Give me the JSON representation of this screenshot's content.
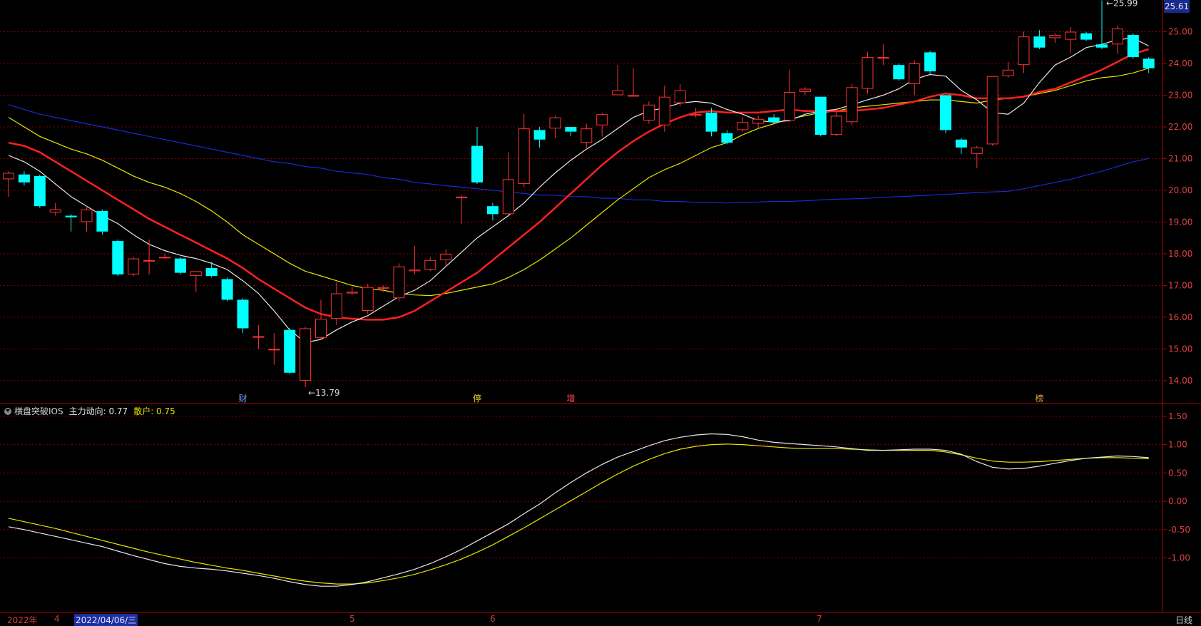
{
  "chart_data": [
    {
      "type": "candlestick",
      "ylim": [
        13.3,
        26.0
      ],
      "y_ticks": [
        "25.00",
        "24.00",
        "23.00",
        "22.00",
        "21.00",
        "20.00",
        "19.00",
        "18.00",
        "17.00",
        "16.00",
        "15.00",
        "14.00"
      ],
      "current_price_label": "25.61",
      "max_label": "25.99",
      "min_label": "13.79",
      "candles": [
        [
          20.35,
          20.55,
          19.8,
          20.6
        ],
        [
          20.5,
          20.25,
          20.15,
          20.6
        ],
        [
          20.45,
          19.5,
          19.45,
          20.5
        ],
        [
          19.3,
          19.4,
          19.2,
          19.6
        ],
        [
          19.2,
          19.15,
          18.7,
          19.25
        ],
        [
          19.0,
          19.4,
          18.7,
          19.5
        ],
        [
          19.35,
          18.7,
          18.6,
          19.4
        ],
        [
          18.4,
          17.35,
          17.3,
          18.45
        ],
        [
          17.35,
          17.85,
          17.3,
          17.9
        ],
        [
          17.8,
          17.8,
          17.35,
          18.45
        ],
        [
          17.9,
          17.9,
          17.85,
          18.0
        ],
        [
          17.85,
          17.4,
          17.35,
          17.9
        ],
        [
          17.3,
          17.45,
          16.8,
          17.45
        ],
        [
          17.55,
          17.3,
          17.25,
          17.75
        ],
        [
          17.2,
          16.55,
          16.5,
          17.25
        ],
        [
          16.55,
          15.65,
          15.5,
          16.6
        ],
        [
          15.4,
          15.4,
          15.0,
          15.75
        ],
        [
          15.0,
          15.0,
          14.5,
          15.5
        ],
        [
          15.6,
          14.25,
          14.2,
          15.65
        ],
        [
          14.0,
          15.65,
          13.79,
          15.7
        ],
        [
          15.35,
          15.95,
          15.3,
          16.55
        ],
        [
          15.95,
          16.75,
          15.75,
          17.1
        ],
        [
          16.75,
          16.8,
          16.7,
          16.95
        ],
        [
          16.2,
          16.95,
          16.1,
          17.05
        ],
        [
          16.9,
          16.95,
          16.8,
          17.0
        ],
        [
          16.6,
          17.6,
          16.5,
          17.7
        ],
        [
          17.45,
          17.5,
          17.35,
          18.25
        ],
        [
          17.5,
          17.8,
          17.45,
          17.9
        ],
        [
          17.8,
          18.0,
          17.6,
          18.15
        ],
        [
          19.75,
          19.8,
          18.95,
          19.85
        ],
        [
          21.4,
          20.25,
          20.2,
          22.0
        ],
        [
          19.5,
          19.25,
          19.05,
          19.6
        ],
        [
          19.25,
          20.35,
          19.2,
          21.2
        ],
        [
          20.2,
          21.95,
          20.1,
          22.4
        ],
        [
          21.9,
          21.6,
          21.35,
          22.0
        ],
        [
          21.95,
          22.3,
          21.65,
          22.35
        ],
        [
          22.0,
          21.85,
          21.7,
          22.0
        ],
        [
          21.5,
          21.95,
          21.3,
          22.1
        ],
        [
          22.05,
          22.4,
          21.7,
          22.45
        ],
        [
          23.0,
          23.15,
          23.0,
          23.95
        ],
        [
          23.0,
          23.0,
          23.0,
          23.85
        ],
        [
          22.2,
          22.7,
          22.1,
          22.8
        ],
        [
          22.05,
          22.95,
          21.85,
          23.3
        ],
        [
          22.75,
          23.15,
          22.65,
          23.35
        ],
        [
          22.35,
          22.4,
          22.3,
          22.6
        ],
        [
          22.45,
          21.85,
          21.7,
          22.6
        ],
        [
          21.8,
          21.5,
          21.45,
          21.9
        ],
        [
          21.9,
          22.15,
          21.85,
          22.3
        ],
        [
          22.1,
          22.25,
          21.95,
          22.35
        ],
        [
          22.3,
          22.15,
          22.1,
          22.4
        ],
        [
          22.2,
          23.1,
          22.15,
          23.8
        ],
        [
          23.1,
          23.2,
          23.0,
          23.25
        ],
        [
          22.95,
          21.75,
          21.7,
          22.95
        ],
        [
          21.75,
          22.35,
          21.7,
          22.6
        ],
        [
          22.15,
          23.25,
          22.05,
          23.35
        ],
        [
          23.2,
          24.2,
          23.05,
          24.35
        ],
        [
          24.15,
          24.2,
          23.95,
          24.6
        ],
        [
          23.95,
          23.5,
          23.45,
          24.0
        ],
        [
          23.35,
          24.0,
          23.0,
          24.1
        ],
        [
          24.35,
          23.75,
          23.65,
          24.4
        ],
        [
          23.0,
          21.9,
          21.8,
          23.0
        ],
        [
          21.6,
          21.35,
          21.15,
          21.65
        ],
        [
          21.15,
          21.35,
          20.7,
          21.4
        ],
        [
          21.45,
          23.6,
          21.4,
          23.6
        ],
        [
          23.6,
          23.8,
          23.55,
          24.05
        ],
        [
          23.95,
          24.85,
          23.7,
          25.0
        ],
        [
          24.85,
          24.5,
          24.45,
          25.05
        ],
        [
          24.8,
          24.9,
          24.65,
          24.95
        ],
        [
          24.75,
          25.0,
          24.3,
          25.15
        ],
        [
          24.95,
          24.75,
          24.7,
          25.0
        ],
        [
          24.6,
          24.5,
          24.45,
          25.99
        ],
        [
          24.6,
          25.1,
          24.3,
          25.2
        ],
        [
          24.9,
          24.2,
          24.15,
          24.95
        ],
        [
          24.15,
          23.85,
          23.7,
          24.2
        ]
      ],
      "ma_white": [
        21.1,
        20.9,
        20.6,
        20.2,
        19.8,
        19.5,
        19.2,
        18.95,
        18.6,
        18.3,
        18.1,
        17.95,
        17.85,
        17.7,
        17.5,
        17.15,
        16.75,
        16.2,
        15.6,
        15.2,
        15.3,
        15.6,
        15.85,
        16.05,
        16.35,
        16.65,
        16.85,
        17.15,
        17.6,
        18.05,
        18.5,
        18.85,
        19.2,
        19.6,
        20.1,
        20.55,
        20.95,
        21.3,
        21.6,
        21.95,
        22.3,
        22.5,
        22.6,
        22.75,
        22.8,
        22.75,
        22.55,
        22.4,
        22.2,
        22.15,
        22.2,
        22.4,
        22.5,
        22.55,
        22.7,
        22.85,
        23.0,
        23.2,
        23.5,
        23.65,
        23.6,
        23.15,
        22.85,
        22.45,
        22.4,
        22.75,
        23.4,
        23.95,
        24.2,
        24.5,
        24.6,
        24.75,
        24.8,
        24.55
      ],
      "ma_red": [
        21.5,
        21.4,
        21.2,
        20.9,
        20.6,
        20.3,
        20.0,
        19.7,
        19.4,
        19.1,
        18.85,
        18.6,
        18.35,
        18.1,
        17.85,
        17.55,
        17.2,
        16.9,
        16.6,
        16.3,
        16.1,
        16.0,
        15.95,
        15.92,
        15.92,
        16.0,
        16.2,
        16.5,
        16.8,
        17.1,
        17.4,
        17.8,
        18.2,
        18.6,
        19.0,
        19.45,
        19.9,
        20.35,
        20.8,
        21.2,
        21.55,
        21.85,
        22.1,
        22.3,
        22.45,
        22.5,
        22.45,
        22.45,
        22.45,
        22.5,
        22.55,
        22.5,
        22.5,
        22.5,
        22.5,
        22.55,
        22.6,
        22.7,
        22.8,
        22.95,
        23.05,
        23.0,
        22.9,
        22.9,
        22.9,
        22.95,
        23.1,
        23.2,
        23.4,
        23.6,
        23.8,
        24.05,
        24.3,
        24.45
      ],
      "ma_yellow": [
        22.3,
        22.0,
        21.7,
        21.5,
        21.3,
        21.15,
        20.95,
        20.7,
        20.45,
        20.25,
        20.1,
        19.9,
        19.65,
        19.35,
        19.0,
        18.6,
        18.3,
        18.0,
        17.7,
        17.45,
        17.3,
        17.15,
        17.0,
        16.9,
        16.85,
        16.75,
        16.7,
        16.68,
        16.75,
        16.85,
        16.95,
        17.05,
        17.25,
        17.5,
        17.8,
        18.15,
        18.5,
        18.9,
        19.3,
        19.7,
        20.05,
        20.4,
        20.65,
        20.85,
        21.1,
        21.35,
        21.5,
        21.75,
        21.95,
        22.1,
        22.25,
        22.35,
        22.45,
        22.5,
        22.6,
        22.65,
        22.7,
        22.75,
        22.8,
        22.85,
        22.85,
        22.8,
        22.75,
        22.85,
        22.9,
        22.95,
        23.05,
        23.15,
        23.3,
        23.45,
        23.55,
        23.6,
        23.7,
        23.85
      ],
      "ma_blue": [
        22.7,
        22.55,
        22.4,
        22.3,
        22.2,
        22.1,
        22.0,
        21.9,
        21.8,
        21.7,
        21.6,
        21.5,
        21.4,
        21.3,
        21.2,
        21.1,
        21.0,
        20.9,
        20.85,
        20.75,
        20.7,
        20.6,
        20.55,
        20.5,
        20.4,
        20.35,
        20.25,
        20.2,
        20.15,
        20.1,
        20.05,
        20.0,
        19.95,
        19.9,
        19.85,
        19.85,
        19.8,
        19.8,
        19.75,
        19.75,
        19.7,
        19.7,
        19.65,
        19.65,
        19.62,
        19.62,
        19.6,
        19.62,
        19.63,
        19.65,
        19.65,
        19.67,
        19.7,
        19.72,
        19.73,
        19.75,
        19.78,
        19.8,
        19.82,
        19.85,
        19.87,
        19.9,
        19.93,
        19.95,
        19.97,
        20.05,
        20.15,
        20.25,
        20.35,
        20.48,
        20.6,
        20.75,
        20.9,
        21.0
      ],
      "event_markers": [
        {
          "index": 15,
          "label": "财",
          "color": "#6aa0ff"
        },
        {
          "index": 30,
          "label": "停",
          "color": "#e0e040"
        },
        {
          "index": 36,
          "label": "增",
          "color": "#ff5050"
        },
        {
          "index": 66,
          "label": "榜",
          "color": "#e0a040"
        }
      ]
    },
    {
      "type": "line",
      "title": "横盘突破IOS",
      "ylim": [
        -1.95,
        1.7
      ],
      "y_ticks": [
        "1.50",
        "1.00",
        "0.50",
        "0.00",
        "-0.50",
        "-1.00"
      ],
      "series": [
        {
          "name": "主力动向",
          "value_label": "0.77",
          "color": "#e8e8e8",
          "values": [
            -0.45,
            -0.5,
            -0.56,
            -0.62,
            -0.68,
            -0.74,
            -0.8,
            -0.88,
            -0.96,
            -1.03,
            -1.1,
            -1.15,
            -1.18,
            -1.2,
            -1.23,
            -1.27,
            -1.31,
            -1.36,
            -1.42,
            -1.47,
            -1.5,
            -1.5,
            -1.47,
            -1.42,
            -1.35,
            -1.28,
            -1.2,
            -1.1,
            -0.98,
            -0.85,
            -0.7,
            -0.55,
            -0.4,
            -0.22,
            -0.05,
            0.15,
            0.33,
            0.5,
            0.65,
            0.78,
            0.88,
            0.98,
            1.07,
            1.13,
            1.17,
            1.19,
            1.18,
            1.14,
            1.08,
            1.04,
            1.02,
            1.0,
            0.98,
            0.96,
            0.93,
            0.9,
            0.9,
            0.91,
            0.92,
            0.92,
            0.9,
            0.83,
            0.7,
            0.6,
            0.57,
            0.58,
            0.62,
            0.67,
            0.72,
            0.76,
            0.78,
            0.8,
            0.79,
            0.77
          ]
        },
        {
          "name": "散户",
          "value_label": "0.75",
          "color": "#e6e600",
          "values": [
            -0.3,
            -0.36,
            -0.42,
            -0.48,
            -0.55,
            -0.62,
            -0.69,
            -0.76,
            -0.83,
            -0.9,
            -0.96,
            -1.02,
            -1.08,
            -1.13,
            -1.18,
            -1.22,
            -1.27,
            -1.32,
            -1.37,
            -1.41,
            -1.44,
            -1.46,
            -1.46,
            -1.44,
            -1.4,
            -1.35,
            -1.29,
            -1.21,
            -1.12,
            -1.02,
            -0.9,
            -0.77,
            -0.62,
            -0.47,
            -0.31,
            -0.15,
            0.01,
            0.17,
            0.33,
            0.48,
            0.62,
            0.74,
            0.84,
            0.92,
            0.97,
            1.0,
            1.01,
            1.0,
            0.98,
            0.96,
            0.94,
            0.93,
            0.93,
            0.93,
            0.92,
            0.91,
            0.9,
            0.9,
            0.9,
            0.9,
            0.87,
            0.82,
            0.76,
            0.71,
            0.69,
            0.69,
            0.7,
            0.72,
            0.74,
            0.76,
            0.77,
            0.77,
            0.76,
            0.75
          ]
        }
      ]
    }
  ],
  "indicator_legend": {
    "name": "横盘突破IOS",
    "series1": "主力动向: 0.77",
    "series2": "散户: 0.75"
  },
  "time_axis": {
    "year_label": "2022年",
    "month_4": "4",
    "date_cursor": "2022/04/06/三",
    "month_5": "5",
    "month_6": "6",
    "month_7": "7",
    "period": "日线"
  },
  "colors": {
    "up": "#ff3333",
    "down": "#00ffff",
    "grid": "#8a0000",
    "frame": "#b00000",
    "ma_white": "#e8e8e8",
    "ma_red": "#ff2020",
    "ma_yellow": "#e6e600",
    "ma_blue": "#1a2ad0"
  }
}
